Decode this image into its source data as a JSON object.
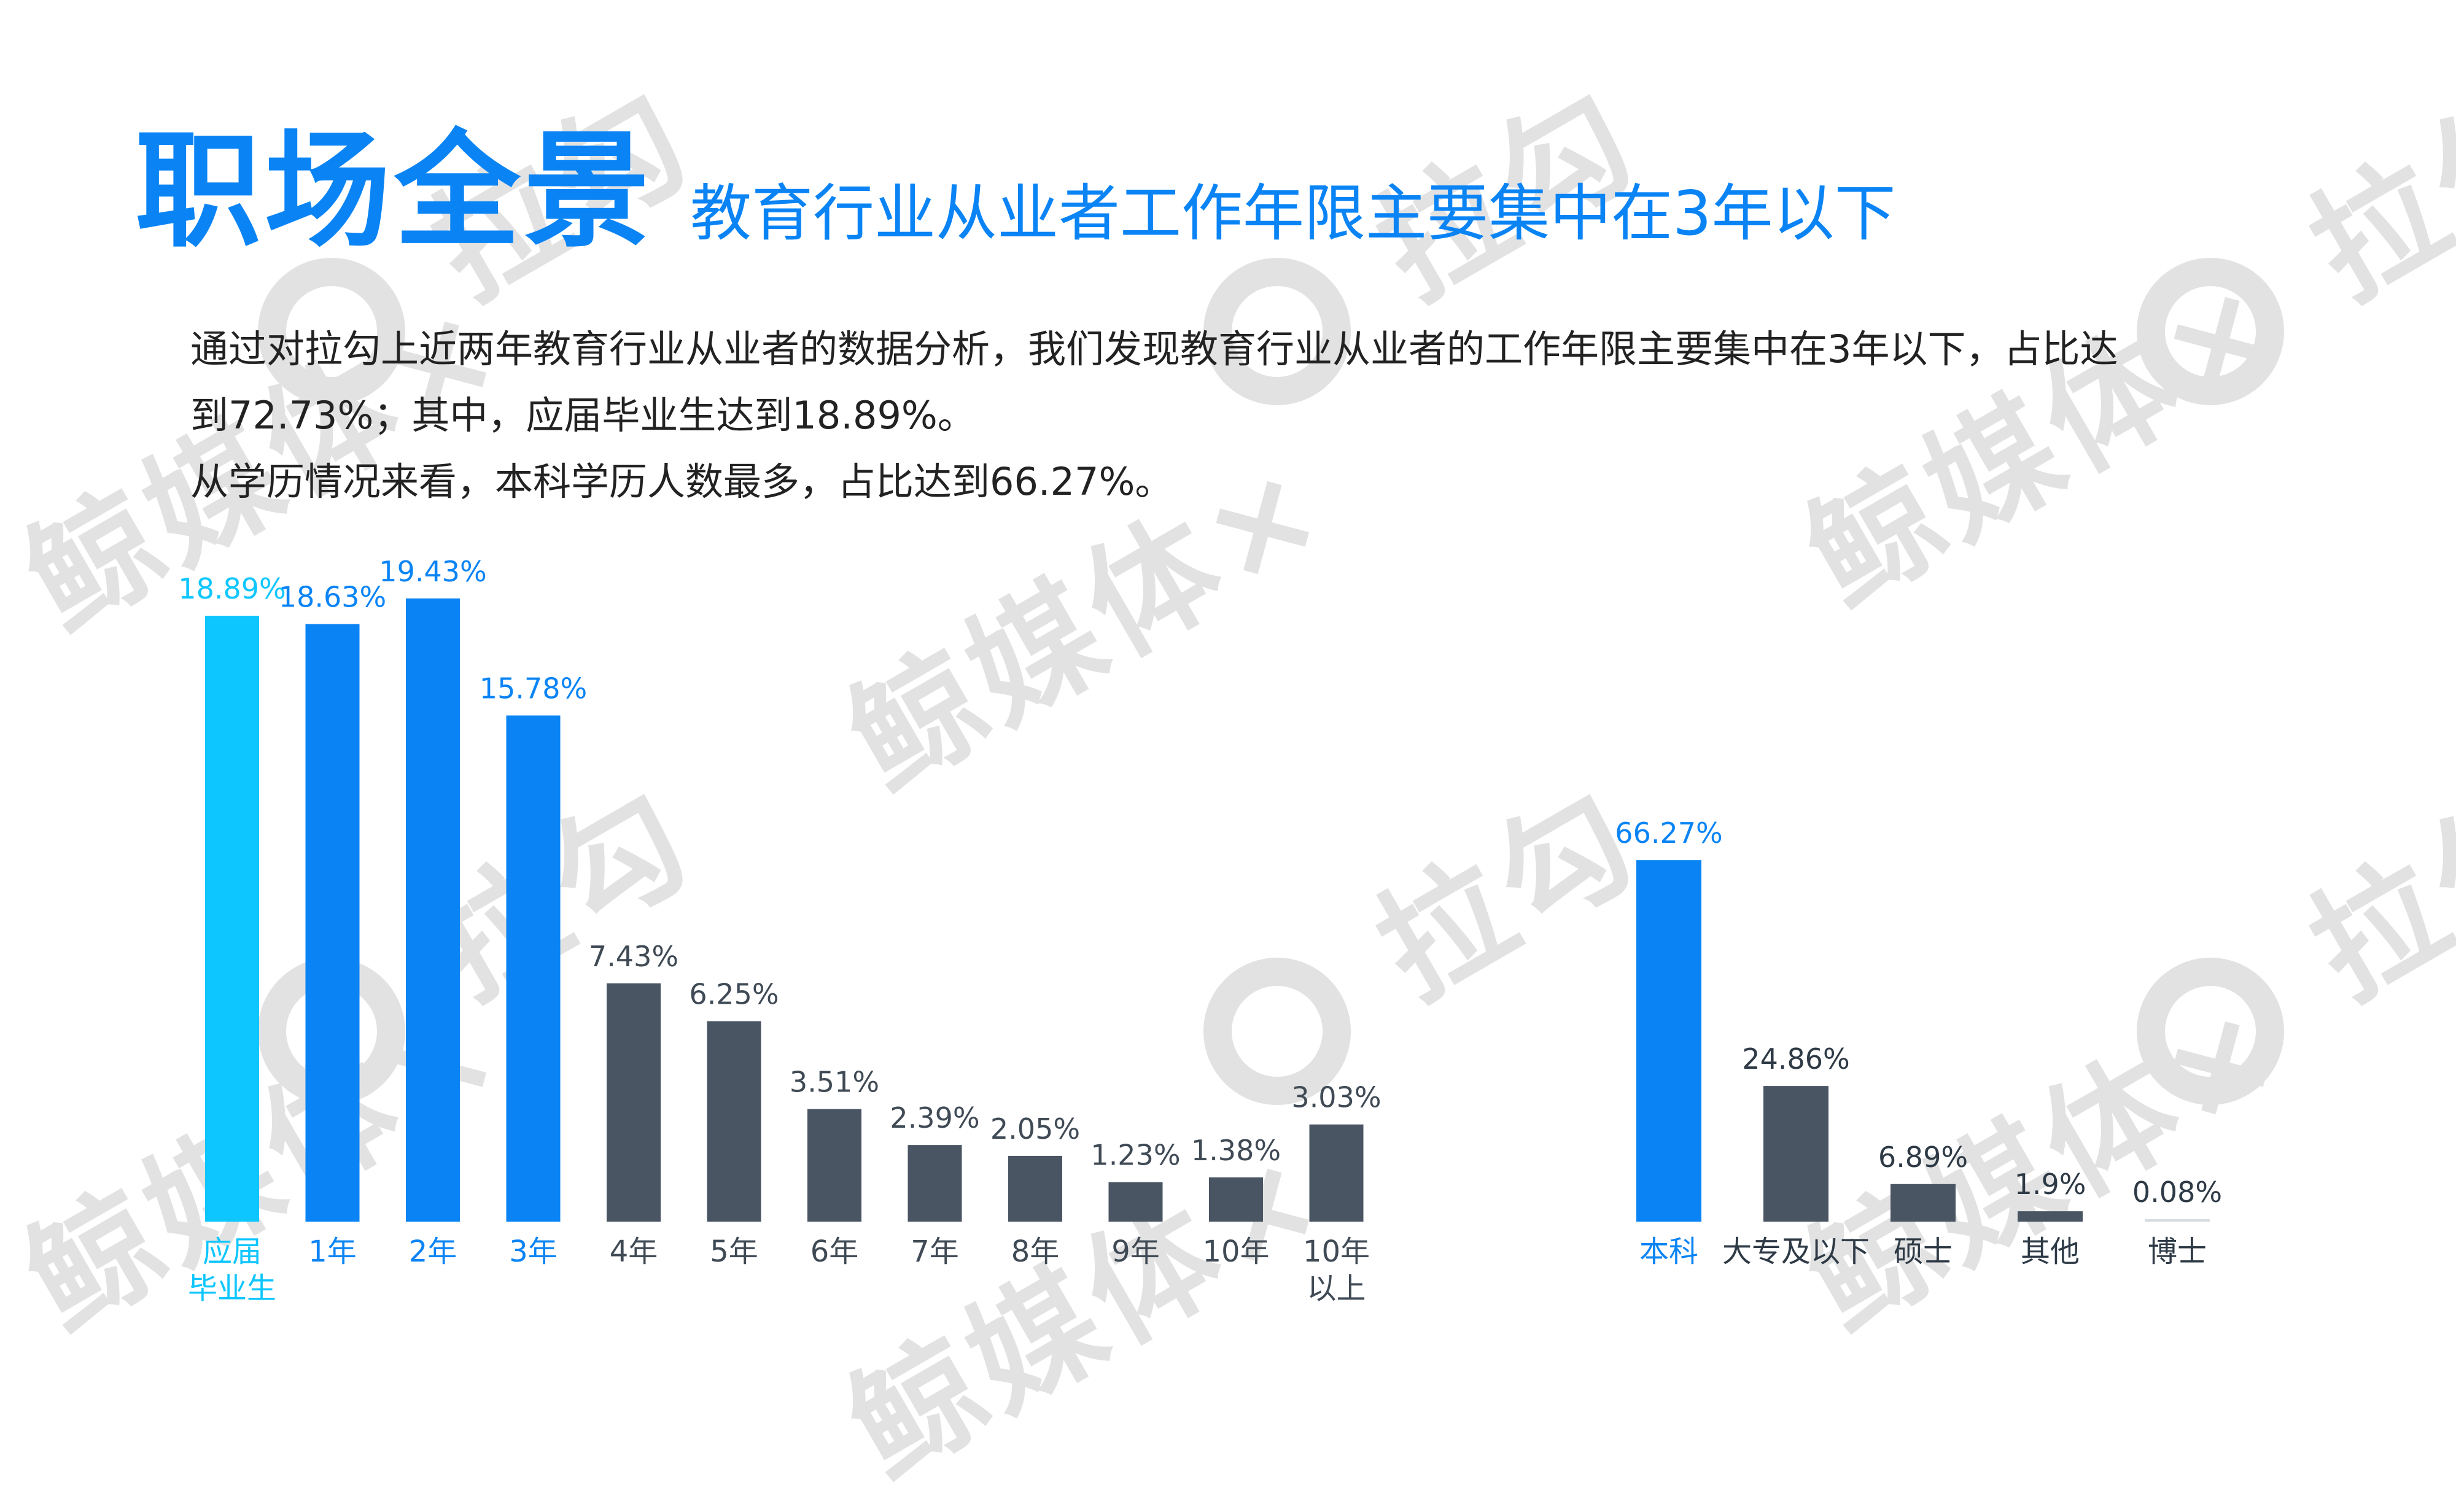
{
  "header": {
    "main_title": "职场全景",
    "subtitle": "教育行业从业者工作年限主要集中在3年以下"
  },
  "description": {
    "line1": "通过对拉勾上近两年教育行业从业者的数据分析，我们发现教育行业从业者的工作年限主要集中在3年以下，占比达",
    "line2": "到72.73%；其中，应届毕业生达到18.89%。",
    "line3": "从学历情况来看，本科学历人数最多，占比达到66.27%。"
  },
  "watermark": {
    "text_a": "拉勾",
    "text_b": "鲸媒体×"
  },
  "colors": {
    "accent_blue": "#0a84f5",
    "cyan": "#0ec6ff",
    "dark_slate": "#4a5564",
    "pale_gray": "#d8dce0"
  },
  "chart_data": [
    {
      "type": "bar",
      "categories": [
        "应届\n毕业生",
        "1年",
        "2年",
        "3年",
        "4年",
        "5年",
        "6年",
        "7年",
        "8年",
        "9年",
        "10年",
        "10年\n以上"
      ],
      "values": [
        18.89,
        18.63,
        19.43,
        15.78,
        7.43,
        6.25,
        3.51,
        2.39,
        2.05,
        1.23,
        1.38,
        3.03
      ],
      "value_labels": [
        "18.89%",
        "18.63%",
        "19.43%",
        "15.78%",
        "7.43%",
        "6.25%",
        "3.51%",
        "2.39%",
        "2.05%",
        "1.23%",
        "1.38%",
        "3.03%"
      ],
      "bar_colors": [
        "#0ec6ff",
        "#0a84f5",
        "#0a84f5",
        "#0a84f5",
        "#4a5564",
        "#4a5564",
        "#4a5564",
        "#4a5564",
        "#4a5564",
        "#4a5564",
        "#4a5564",
        "#4a5564"
      ],
      "label_colors": [
        "#0ec6ff",
        "#0a84f5",
        "#0a84f5",
        "#0a84f5",
        "#3f4a55",
        "#3f4a55",
        "#3f4a55",
        "#3f4a55",
        "#3f4a55",
        "#3f4a55",
        "#3f4a55",
        "#3f4a55"
      ],
      "ylim": [
        0,
        20
      ],
      "grid": false
    },
    {
      "type": "bar",
      "categories": [
        "本科",
        "大专及以下",
        "硕士",
        "其他",
        "博士"
      ],
      "values": [
        66.27,
        24.86,
        6.89,
        1.9,
        0.08
      ],
      "value_labels": [
        "66.27%",
        "24.86%",
        "6.89%",
        "1.9%",
        "0.08%"
      ],
      "bar_colors": [
        "#0a84f5",
        "#4a5564",
        "#4a5564",
        "#4a5564",
        "#d8dce0"
      ],
      "label_colors": [
        "#0a84f5",
        "#2e3a46",
        "#2e3a46",
        "#2e3a46",
        "#2e3a46"
      ],
      "ylim": [
        0,
        70
      ],
      "grid": false
    }
  ]
}
